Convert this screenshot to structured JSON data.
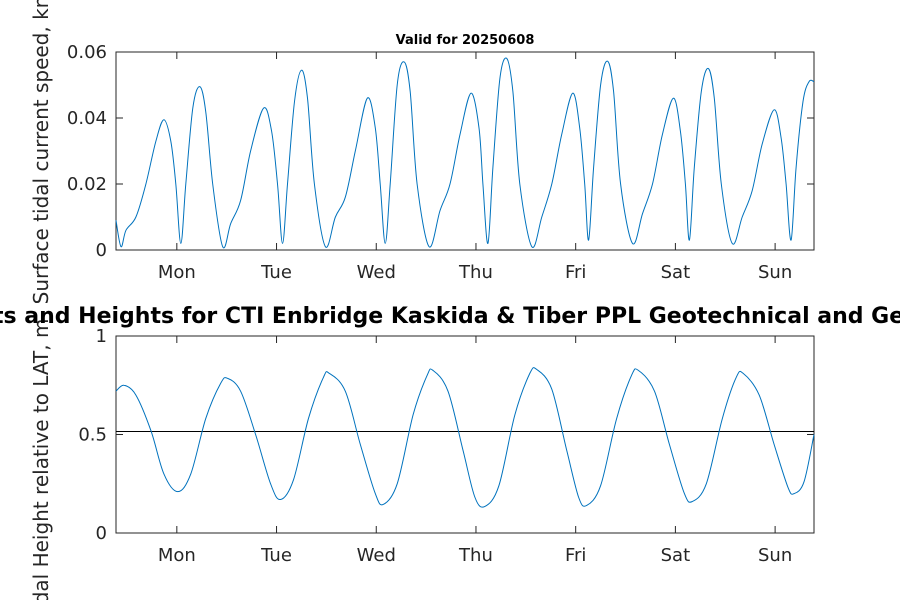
{
  "chart_data": [
    {
      "type": "line",
      "title": "Valid for 20250608",
      "ylabel": "Surface tidal current speed, kn",
      "categories": [
        "Mon",
        "Tue",
        "Wed",
        "Thu",
        "Fri",
        "Sat",
        "Sun"
      ],
      "yticks": [
        "0",
        "0.02",
        "0.04",
        "0.06"
      ],
      "ylim": [
        0,
        0.06
      ],
      "xlim": [
        0,
        7
      ],
      "grid": false,
      "series": [
        {
          "color": "#0072BD",
          "points": [
            [
              0.0,
              0.009
            ],
            [
              0.05,
              0.001
            ],
            [
              0.1,
              0.006
            ],
            [
              0.2,
              0.01
            ],
            [
              0.3,
              0.02
            ],
            [
              0.4,
              0.033
            ],
            [
              0.48,
              0.0395
            ],
            [
              0.55,
              0.033
            ],
            [
              0.6,
              0.02
            ],
            [
              0.65,
              0.002
            ],
            [
              0.7,
              0.02
            ],
            [
              0.77,
              0.043
            ],
            [
              0.84,
              0.0495
            ],
            [
              0.9,
              0.042
            ],
            [
              0.97,
              0.02
            ],
            [
              1.07,
              0.001
            ],
            [
              1.15,
              0.008
            ],
            [
              1.25,
              0.015
            ],
            [
              1.35,
              0.03
            ],
            [
              1.48,
              0.043
            ],
            [
              1.56,
              0.036
            ],
            [
              1.62,
              0.02
            ],
            [
              1.67,
              0.002
            ],
            [
              1.72,
              0.02
            ],
            [
              1.79,
              0.045
            ],
            [
              1.86,
              0.0545
            ],
            [
              1.92,
              0.046
            ],
            [
              1.99,
              0.02
            ],
            [
              2.1,
              0.001
            ],
            [
              2.2,
              0.01
            ],
            [
              2.3,
              0.016
            ],
            [
              2.4,
              0.03
            ],
            [
              2.52,
              0.046
            ],
            [
              2.6,
              0.037
            ],
            [
              2.65,
              0.02
            ],
            [
              2.7,
              0.002
            ],
            [
              2.75,
              0.02
            ],
            [
              2.82,
              0.05
            ],
            [
              2.89,
              0.057
            ],
            [
              2.95,
              0.048
            ],
            [
              3.02,
              0.02
            ],
            [
              3.14,
              0.001
            ],
            [
              3.25,
              0.012
            ],
            [
              3.35,
              0.02
            ],
            [
              3.45,
              0.035
            ],
            [
              3.56,
              0.0475
            ],
            [
              3.64,
              0.037
            ],
            [
              3.68,
              0.02
            ],
            [
              3.73,
              0.002
            ],
            [
              3.78,
              0.025
            ],
            [
              3.85,
              0.052
            ],
            [
              3.92,
              0.058
            ],
            [
              3.98,
              0.048
            ],
            [
              4.05,
              0.02
            ],
            [
              4.17,
              0.001
            ],
            [
              4.27,
              0.01
            ],
            [
              4.37,
              0.02
            ],
            [
              4.47,
              0.035
            ],
            [
              4.58,
              0.0475
            ],
            [
              4.65,
              0.037
            ],
            [
              4.7,
              0.02
            ],
            [
              4.74,
              0.003
            ],
            [
              4.79,
              0.025
            ],
            [
              4.86,
              0.05
            ],
            [
              4.93,
              0.0572
            ],
            [
              4.99,
              0.048
            ],
            [
              5.06,
              0.02
            ],
            [
              5.18,
              0.002
            ],
            [
              5.28,
              0.011
            ],
            [
              5.38,
              0.02
            ],
            [
              5.48,
              0.035
            ],
            [
              5.59,
              0.046
            ],
            [
              5.66,
              0.036
            ],
            [
              5.71,
              0.02
            ],
            [
              5.75,
              0.003
            ],
            [
              5.8,
              0.025
            ],
            [
              5.87,
              0.048
            ],
            [
              5.94,
              0.055
            ],
            [
              6.0,
              0.046
            ],
            [
              6.07,
              0.02
            ],
            [
              6.18,
              0.002
            ],
            [
              6.28,
              0.01
            ],
            [
              6.38,
              0.018
            ],
            [
              6.48,
              0.032
            ],
            [
              6.6,
              0.0425
            ],
            [
              6.67,
              0.034
            ],
            [
              6.72,
              0.02
            ],
            [
              6.77,
              0.003
            ],
            [
              6.82,
              0.025
            ],
            [
              6.89,
              0.045
            ],
            [
              6.95,
              0.051
            ],
            [
              7.0,
              0.051
            ]
          ]
        }
      ]
    },
    {
      "type": "line",
      "title": "Currents and Heights for CTI Enbridge  Kaskida & Tiber PPL Geotechnical and Geophysical",
      "ylabel": "Tidal Height relative to LAT, m",
      "categories": [
        "Mon",
        "Tue",
        "Wed",
        "Thu",
        "Fri",
        "Sat",
        "Sun"
      ],
      "yticks": [
        "0",
        "0.5",
        "1"
      ],
      "ylim": [
        0,
        1
      ],
      "xlim": [
        0,
        7
      ],
      "reference_line": 0.515,
      "grid": false,
      "series": [
        {
          "color": "#0072BD",
          "points": [
            [
              0.0,
              0.72
            ],
            [
              0.08,
              0.75
            ],
            [
              0.2,
              0.7
            ],
            [
              0.35,
              0.52
            ],
            [
              0.48,
              0.3
            ],
            [
              0.62,
              0.21
            ],
            [
              0.75,
              0.3
            ],
            [
              0.9,
              0.58
            ],
            [
              1.05,
              0.76
            ],
            [
              1.12,
              0.785
            ],
            [
              1.25,
              0.72
            ],
            [
              1.4,
              0.5
            ],
            [
              1.55,
              0.25
            ],
            [
              1.65,
              0.17
            ],
            [
              1.78,
              0.27
            ],
            [
              1.93,
              0.58
            ],
            [
              2.08,
              0.79
            ],
            [
              2.14,
              0.81
            ],
            [
              2.3,
              0.72
            ],
            [
              2.45,
              0.45
            ],
            [
              2.6,
              0.2
            ],
            [
              2.68,
              0.145
            ],
            [
              2.82,
              0.25
            ],
            [
              2.98,
              0.6
            ],
            [
              3.12,
              0.8
            ],
            [
              3.18,
              0.825
            ],
            [
              3.33,
              0.72
            ],
            [
              3.48,
              0.42
            ],
            [
              3.6,
              0.18
            ],
            [
              3.7,
              0.135
            ],
            [
              3.84,
              0.24
            ],
            [
              4.0,
              0.6
            ],
            [
              4.15,
              0.81
            ],
            [
              4.22,
              0.83
            ],
            [
              4.37,
              0.73
            ],
            [
              4.52,
              0.42
            ],
            [
              4.64,
              0.18
            ],
            [
              4.72,
              0.14
            ],
            [
              4.86,
              0.24
            ],
            [
              5.02,
              0.58
            ],
            [
              5.17,
              0.8
            ],
            [
              5.24,
              0.825
            ],
            [
              5.4,
              0.72
            ],
            [
              5.55,
              0.45
            ],
            [
              5.7,
              0.2
            ],
            [
              5.78,
              0.16
            ],
            [
              5.92,
              0.25
            ],
            [
              6.08,
              0.58
            ],
            [
              6.22,
              0.79
            ],
            [
              6.29,
              0.81
            ],
            [
              6.45,
              0.7
            ],
            [
              6.6,
              0.45
            ],
            [
              6.74,
              0.23
            ],
            [
              6.8,
              0.2
            ],
            [
              6.9,
              0.26
            ],
            [
              7.0,
              0.5
            ]
          ]
        }
      ]
    }
  ]
}
